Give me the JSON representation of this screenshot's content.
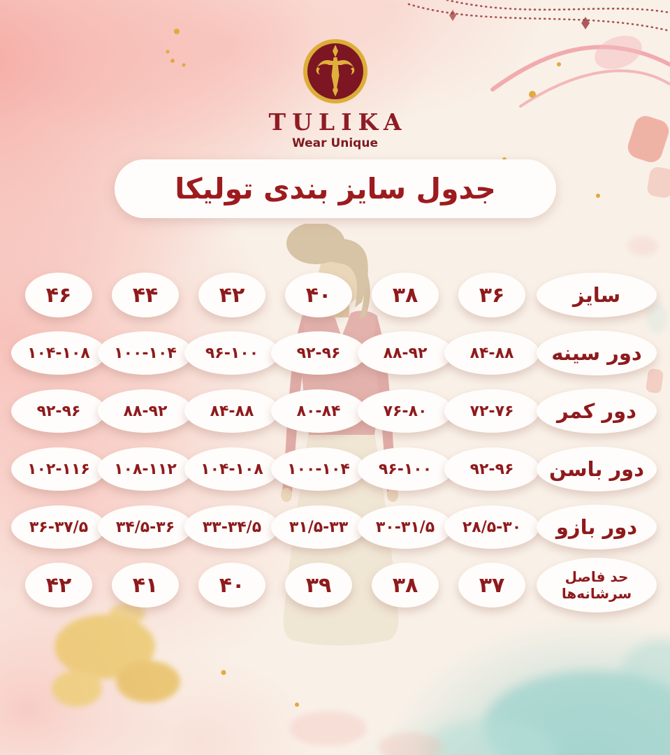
{
  "brand": {
    "name": "TULIKA",
    "tagline": "Wear Unique",
    "logo_icon": "tulika-gold-monogram-in-maroon-circle"
  },
  "title": "جدول سایز بندی تولیکا",
  "size_table": {
    "label_column_side": "right",
    "rows": [
      {
        "type": "size",
        "label": "سایز",
        "values": [
          "۴۶",
          "۴۴",
          "۴۲",
          "۴۰",
          "۳۸",
          "۳۶"
        ]
      },
      {
        "type": "range",
        "label": "دور سینه",
        "values": [
          "۱۰۴-۱۰۸",
          "۱۰۰-۱۰۴",
          "۹۶-۱۰۰",
          "۹۲-۹۶",
          "۸۸-۹۲",
          "۸۴-۸۸"
        ]
      },
      {
        "type": "range",
        "label": "دور کمر",
        "values": [
          "۹۲-۹۶",
          "۸۸-۹۲",
          "۸۴-۸۸",
          "۸۰-۸۴",
          "۷۶-۸۰",
          "۷۲-۷۶"
        ]
      },
      {
        "type": "range",
        "label": "دور باسن",
        "values": [
          "۱۰۲-۱۱۶",
          "۱۰۸-۱۱۲",
          "۱۰۴-۱۰۸",
          "۱۰۰-۱۰۴",
          "۹۶-۱۰۰",
          "۹۲-۹۶"
        ]
      },
      {
        "type": "range",
        "label": "دور بازو",
        "values": [
          "۳۶-۳۷/۵",
          "۳۴/۵-۳۶",
          "۳۳-۳۴/۵",
          "۳۱/۵-۳۳",
          "۳۰-۳۱/۵",
          "۲۸/۵-۳۰"
        ]
      },
      {
        "type": "size",
        "label": "حد فاصل\nسرشانه‌ها",
        "values": [
          "۴۲",
          "۴۱",
          "۴۰",
          "۳۹",
          "۳۸",
          "۳۷"
        ]
      }
    ]
  },
  "decor": {
    "illustration": "woman-fashion-figure",
    "background_style": "watercolor-pink-cream-teal-gold"
  },
  "colors": {
    "text_maroon": "#8e1a1c",
    "title_red": "#9c1b1e",
    "logo_gold": "#dcae38",
    "logo_maroon": "#7d1623",
    "pink_wash": "#f5a9a4",
    "teal_wash": "#9fd3cd",
    "gold_splash": "#e9c45c",
    "cell_bg": "#fffdfb",
    "page_cream": "#f9f1e8"
  }
}
